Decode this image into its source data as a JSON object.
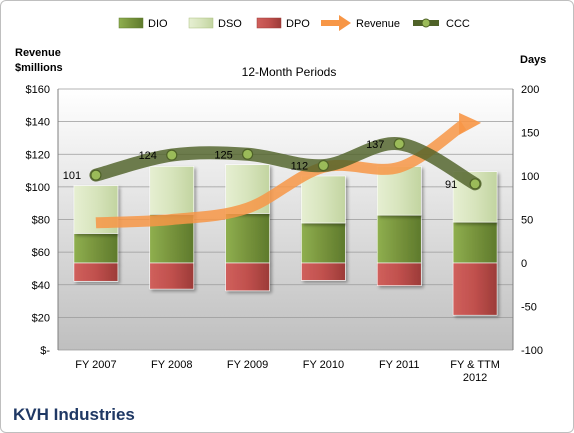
{
  "company": "KVH Industries",
  "chart_data": {
    "type": "bar",
    "title": "12-Month Periods",
    "ylabel_left": [
      "Revenue",
      "$millions"
    ],
    "ylabel_right": "Days",
    "categories": [
      [
        "FY 2007"
      ],
      [
        "FY 2008"
      ],
      [
        "FY 2009"
      ],
      [
        "FY 2010"
      ],
      [
        "FY 2011"
      ],
      [
        "FY & TTM",
        "2012"
      ]
    ],
    "left_axis": {
      "ticks": [
        "$-",
        "$20",
        "$40",
        "$60",
        "$80",
        "$100",
        "$120",
        "$140",
        "$160"
      ],
      "ylim": [
        0,
        160
      ]
    },
    "right_axis": {
      "ticks": [
        "-100",
        "-50",
        "0",
        "50",
        "100",
        "150",
        "200"
      ],
      "ylim": [
        -100,
        200
      ]
    },
    "legend": [
      "DIO",
      "DSO",
      "DPO",
      "Revenue",
      "CCC"
    ],
    "legend_position": "top",
    "grid": true,
    "colors": {
      "DIO": "#77933c",
      "DSO": "#d7e4bc",
      "DPO": "#c0504d",
      "Revenue": "#f79646",
      "CCC": "#4f6228"
    },
    "series": [
      {
        "name": "DIO",
        "axis": "days",
        "values": [
          34,
          56,
          57,
          46,
          55,
          47
        ]
      },
      {
        "name": "DSO",
        "axis": "days",
        "values": [
          55,
          55,
          56,
          54,
          56,
          58
        ]
      },
      {
        "name": "DPO",
        "axis": "days",
        "values": [
          -21,
          -30,
          -32,
          -20,
          -26,
          -60
        ]
      },
      {
        "name": "Revenue",
        "axis": "revenue",
        "values": [
          78,
          80,
          87,
          112,
          112,
          138
        ]
      },
      {
        "name": "CCC",
        "axis": "days",
        "values": [
          101,
          124,
          125,
          112,
          137,
          91
        ]
      }
    ],
    "data_labels": [
      "101",
      "124",
      "125",
      "112",
      "137",
      "91"
    ]
  }
}
